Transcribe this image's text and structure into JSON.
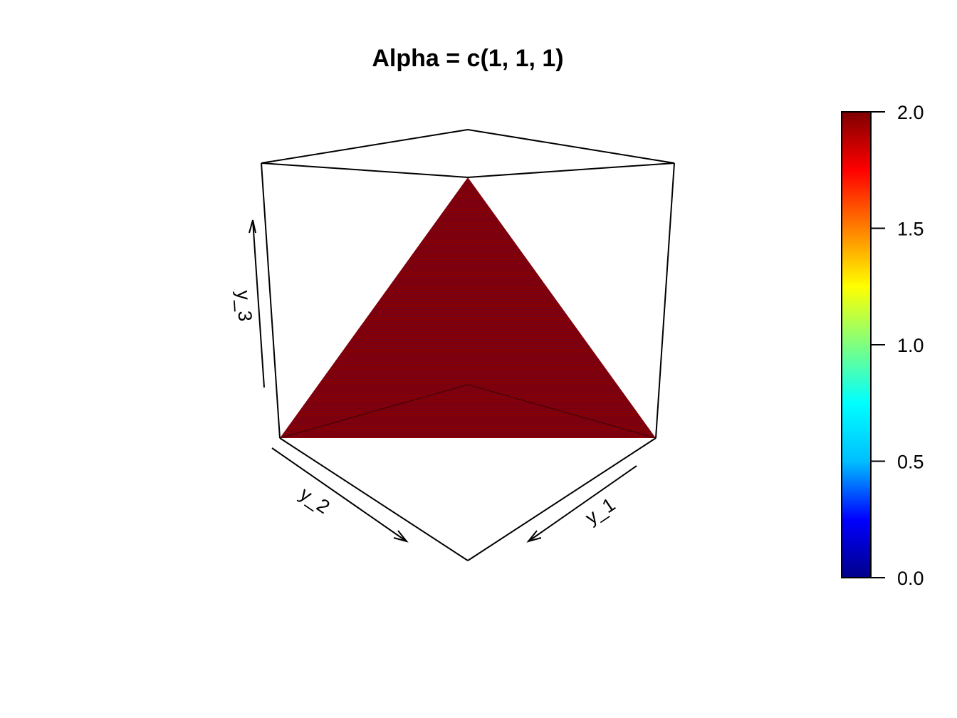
{
  "chart_data": {
    "type": "surface3d",
    "title": "Alpha = c(1, 1, 1)",
    "axes": {
      "x": "y_1",
      "y": "y_2",
      "z": "y_3"
    },
    "domain": "simplex y_1 + y_2 + y_3 = 1",
    "density_value": 2.0,
    "surface_color": "#8B0000",
    "stripe_color": "#00008B",
    "colorbar": {
      "min": 0.0,
      "max": 2.0,
      "ticks": [
        0.0,
        0.5,
        1.0,
        1.5,
        2.0
      ],
      "tick_labels": [
        "0.0",
        "0.5",
        "1.0",
        "1.5",
        "2.0"
      ],
      "palette": [
        "#00008B",
        "#0000FF",
        "#00BFFF",
        "#00FFFF",
        "#7FFF7F",
        "#FFFF00",
        "#FF7F00",
        "#FF0000",
        "#7F0000"
      ]
    }
  }
}
